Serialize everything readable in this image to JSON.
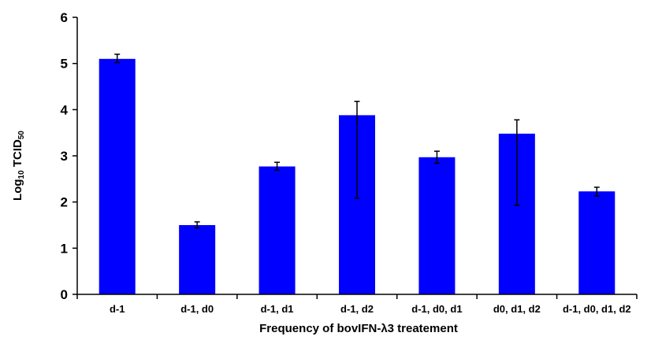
{
  "chart_data": {
    "type": "bar",
    "title": "",
    "xlabel": "Frequency of bovIFN-λ3 treatement",
    "ylabel": {
      "main": "Log",
      "sub1": "10",
      "mid": " TCID",
      "sub2": "50"
    },
    "categories": [
      "d-1",
      "d-1, d0",
      "d-1, d1",
      "d-1, d2",
      "d-1, d0, d1",
      "d0, d1, d2",
      "d-1, d0, d1, d2"
    ],
    "values": [
      5.1,
      1.5,
      2.77,
      3.88,
      2.97,
      3.48,
      2.23
    ],
    "error_low": [
      5.02,
      1.44,
      2.69,
      2.08,
      2.84,
      1.93,
      2.13
    ],
    "error_high": [
      5.2,
      1.57,
      2.86,
      4.18,
      3.1,
      3.78,
      2.32
    ],
    "ylim": [
      0,
      6
    ],
    "yticks": [
      0,
      1,
      2,
      3,
      4,
      5,
      6
    ],
    "grid": false,
    "bar_color": "#0000ff",
    "legend": "none"
  }
}
